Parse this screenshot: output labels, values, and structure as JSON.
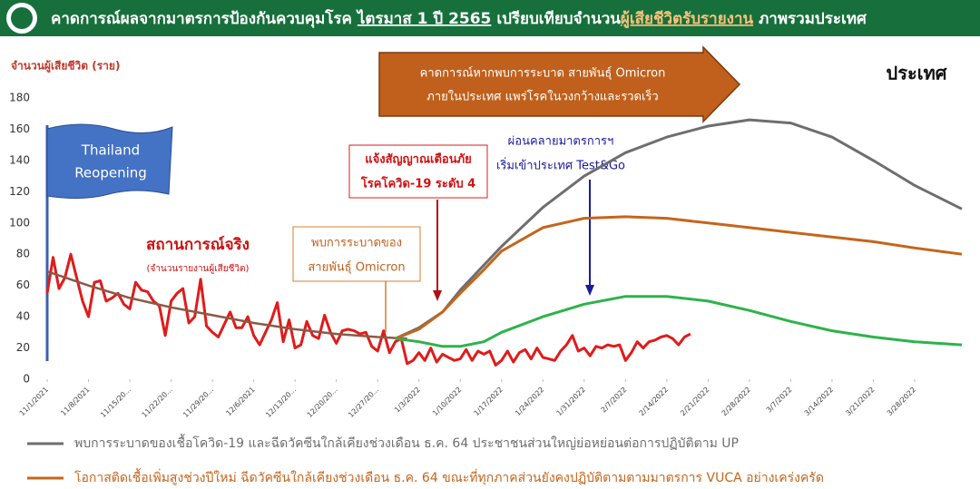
{
  "header": {
    "title_parts": [
      "คาดการณ์ผลจากมาตรการป้องกันควบคุมโรค",
      "ไตรมาส 1 ปี 2565",
      "เปรียบเทียบจำนวน",
      "ผู้เสียชีวิตรับรายงาน",
      "ภาพรวมประเทศ"
    ]
  },
  "chart_data": {
    "type": "line",
    "ylabel": "จำนวนผู้เสียชีวิต (ราย)",
    "region": "ประเทศ",
    "annotations": {
      "forecast_arrow": [
        "คาดการณ์หากพบการระบาด สายพันธุ์ Omicron",
        "ภายในประเทศ แพร่โรคในวงกว้างและรวดเร็ว"
      ],
      "flag": [
        "Thailand",
        "Reopening"
      ],
      "alert": [
        "แจ้งสัญญาณเตือนภัย",
        "โรคโควิด-19 ระดับ 4"
      ],
      "relax": [
        "ผ่อนคลายมาตรการฯ",
        "เริ่มเข้าประเทศ Test&Go"
      ],
      "omicron": [
        "พบการระบาดของ",
        "สายพันธุ์ Omicron"
      ],
      "actual": [
        "สถานการณ์จริง",
        "(จำนวนรายงานผู้เสียชีวิต)"
      ]
    },
    "xlim": [
      "2021-11-01",
      "2022-04-05"
    ],
    "xticks": [
      {
        "value": "2021-11-01",
        "label": "11/1/2021"
      },
      {
        "value": "2021-11-08",
        "label": "11/8/2021"
      },
      {
        "value": "2021-11-15",
        "label": "11/15/20..."
      },
      {
        "value": "2021-11-22",
        "label": "11/22/20..."
      },
      {
        "value": "2021-11-29",
        "label": "11/29/20..."
      },
      {
        "value": "2021-12-06",
        "label": "12/6/2021"
      },
      {
        "value": "2021-12-13",
        "label": "12/13/20..."
      },
      {
        "value": "2021-12-20",
        "label": "12/20/20..."
      },
      {
        "value": "2021-12-27",
        "label": "12/27/20..."
      },
      {
        "value": "2022-01-03",
        "label": "1/3/2022"
      },
      {
        "value": "2022-01-10",
        "label": "1/10/2022"
      },
      {
        "value": "2022-01-17",
        "label": "1/17/2022"
      },
      {
        "value": "2022-01-24",
        "label": "1/24/2022"
      },
      {
        "value": "2022-01-31",
        "label": "1/31/2022"
      },
      {
        "value": "2022-02-07",
        "label": "2/7/2022"
      },
      {
        "value": "2022-02-14",
        "label": "2/14/2022"
      },
      {
        "value": "2022-02-21",
        "label": "2/21/2022"
      },
      {
        "value": "2022-02-28",
        "label": "2/28/2022"
      },
      {
        "value": "2022-03-07",
        "label": "3/7/2022"
      },
      {
        "value": "2022-03-14",
        "label": "3/14/2022"
      },
      {
        "value": "2022-03-21",
        "label": "3/21/2022"
      },
      {
        "value": "2022-03-28",
        "label": "3/28/2022"
      }
    ],
    "ylim": [
      0,
      180
    ],
    "yticks": [
      0,
      20,
      40,
      60,
      80,
      100,
      120,
      140,
      160,
      180
    ],
    "series": [
      {
        "color": "#e01b1b",
        "width": 3,
        "x": [
          "2021-11-01",
          "2021-11-02",
          "2021-11-03",
          "2021-11-04",
          "2021-11-05",
          "2021-11-06",
          "2021-11-07",
          "2021-11-08",
          "2021-11-09",
          "2021-11-10",
          "2021-11-11",
          "2021-11-12",
          "2021-11-13",
          "2021-11-14",
          "2021-11-15",
          "2021-11-16",
          "2021-11-17",
          "2021-11-18",
          "2021-11-19",
          "2021-11-20",
          "2021-11-21",
          "2021-11-22",
          "2021-11-23",
          "2021-11-24",
          "2021-11-25",
          "2021-11-26",
          "2021-11-27",
          "2021-11-28",
          "2021-11-29",
          "2021-11-30",
          "2021-12-01",
          "2021-12-02",
          "2021-12-03",
          "2021-12-04",
          "2021-12-05",
          "2021-12-06",
          "2021-12-07",
          "2021-12-08",
          "2021-12-09",
          "2021-12-10",
          "2021-12-11",
          "2021-12-12",
          "2021-12-13",
          "2021-12-14",
          "2021-12-15",
          "2021-12-16",
          "2021-12-17",
          "2021-12-18",
          "2021-12-19",
          "2021-12-20",
          "2021-12-21",
          "2021-12-22",
          "2021-12-23",
          "2021-12-24",
          "2021-12-25",
          "2021-12-26",
          "2021-12-27",
          "2021-12-28",
          "2021-12-29",
          "2021-12-30",
          "2021-12-31",
          "2022-01-01",
          "2022-01-02",
          "2022-01-03",
          "2022-01-04",
          "2022-01-05",
          "2022-01-06",
          "2022-01-07",
          "2022-01-08",
          "2022-01-09",
          "2022-01-10",
          "2022-01-11",
          "2022-01-12",
          "2022-01-13",
          "2022-01-14",
          "2022-01-15",
          "2022-01-16",
          "2022-01-17",
          "2022-01-18",
          "2022-01-19",
          "2022-01-20",
          "2022-01-21",
          "2022-01-22",
          "2022-01-23",
          "2022-01-24",
          "2022-01-25",
          "2022-01-26",
          "2022-01-27",
          "2022-01-28",
          "2022-01-29",
          "2022-01-30",
          "2022-01-31",
          "2022-02-01",
          "2022-02-02",
          "2022-02-03",
          "2022-02-04",
          "2022-02-05",
          "2022-02-06",
          "2022-02-07",
          "2022-02-08",
          "2022-02-09",
          "2022-02-10",
          "2022-02-11",
          "2022-02-12",
          "2022-02-13",
          "2022-02-14",
          "2022-02-15",
          "2022-02-16",
          "2022-02-17",
          "2022-02-18"
        ],
        "values": [
          55,
          78,
          58,
          65,
          80,
          65,
          50,
          40,
          62,
          63,
          50,
          52,
          55,
          48,
          45,
          62,
          57,
          56,
          50,
          47,
          28,
          50,
          55,
          58,
          36,
          40,
          64,
          34,
          30,
          27,
          35,
          43,
          33,
          33,
          40,
          28,
          22,
          30,
          38,
          49,
          24,
          38,
          20,
          22,
          37,
          28,
          26,
          41,
          30,
          23,
          31,
          32,
          31,
          29,
          30,
          21,
          18,
          31,
          17,
          24,
          26,
          10,
          12,
          17,
          12,
          20,
          11,
          16,
          14,
          12,
          13,
          19,
          12,
          18,
          16,
          18,
          9,
          12,
          18,
          11,
          17,
          19,
          13,
          20,
          14,
          13,
          12,
          18,
          22,
          28,
          18,
          20,
          15,
          21,
          20,
          22,
          21,
          22,
          12,
          17,
          24,
          20,
          24,
          25,
          27,
          28,
          26,
          22,
          27,
          29
        ]
      },
      {
        "color": "#8a5a44",
        "width": 2.5,
        "x": [
          "2021-11-01",
          "2021-11-08",
          "2021-11-15",
          "2021-11-22",
          "2021-11-29",
          "2021-12-06",
          "2021-12-13",
          "2021-12-20",
          "2021-12-27",
          "2022-01-01"
        ],
        "values": [
          69,
          60,
          52,
          46,
          41,
          36,
          32,
          29,
          27,
          26
        ]
      },
      {
        "name": "พบการระบาดของเชื้อโควิด-19 และฉีดวัคซีนใกล้เคียงช่วงเดือน ธ.ค. 64 ประชาชนส่วนใหญ่ย่อหย่อนต่อการปฏิบัติตาม UP",
        "color": "#6e6e6e",
        "width": 3,
        "x": [
          "2021-12-30",
          "2022-01-03",
          "2022-01-07",
          "2022-01-10",
          "2022-01-14",
          "2022-01-17",
          "2022-01-24",
          "2022-01-31",
          "2022-02-07",
          "2022-02-14",
          "2022-02-21",
          "2022-02-28",
          "2022-03-07",
          "2022-03-14",
          "2022-03-21",
          "2022-03-28",
          "2022-04-05"
        ],
        "values": [
          26,
          33,
          43,
          57,
          73,
          85,
          110,
          130,
          145,
          155,
          162,
          166,
          164,
          155,
          140,
          124,
          109
        ]
      },
      {
        "name": "โอกาสติดเชื้อเพิ่มสูงช่วงปีใหม่ ฉีดวัคซีนใกล้เคียงช่วงเดือน ธ.ค. 64 ขณะที่ทุกภาคส่วนยังคงปฏิบัติตามตามมาตรการ VUCA อย่างเคร่งครัด",
        "color": "#c5651c",
        "width": 3,
        "x": [
          "2021-12-30",
          "2022-01-03",
          "2022-01-07",
          "2022-01-10",
          "2022-01-14",
          "2022-01-17",
          "2022-01-24",
          "2022-01-31",
          "2022-02-07",
          "2022-02-14",
          "2022-02-21",
          "2022-02-28",
          "2022-03-07",
          "2022-03-14",
          "2022-03-21",
          "2022-03-28",
          "2022-04-05"
        ],
        "values": [
          26,
          32,
          43,
          55,
          70,
          82,
          97,
          103,
          104,
          103,
          100,
          97,
          94,
          91,
          88,
          84,
          80
        ]
      },
      {
        "color": "#2db34a",
        "width": 3,
        "x": [
          "2021-12-30",
          "2022-01-03",
          "2022-01-07",
          "2022-01-10",
          "2022-01-14",
          "2022-01-17",
          "2022-01-24",
          "2022-01-31",
          "2022-02-07",
          "2022-02-14",
          "2022-02-21",
          "2022-02-28",
          "2022-03-07",
          "2022-03-14",
          "2022-03-21",
          "2022-03-28",
          "2022-04-05"
        ],
        "values": [
          26,
          24,
          21,
          21,
          24,
          30,
          40,
          48,
          53,
          53,
          50,
          44,
          37,
          31,
          27,
          24,
          22
        ]
      }
    ]
  }
}
